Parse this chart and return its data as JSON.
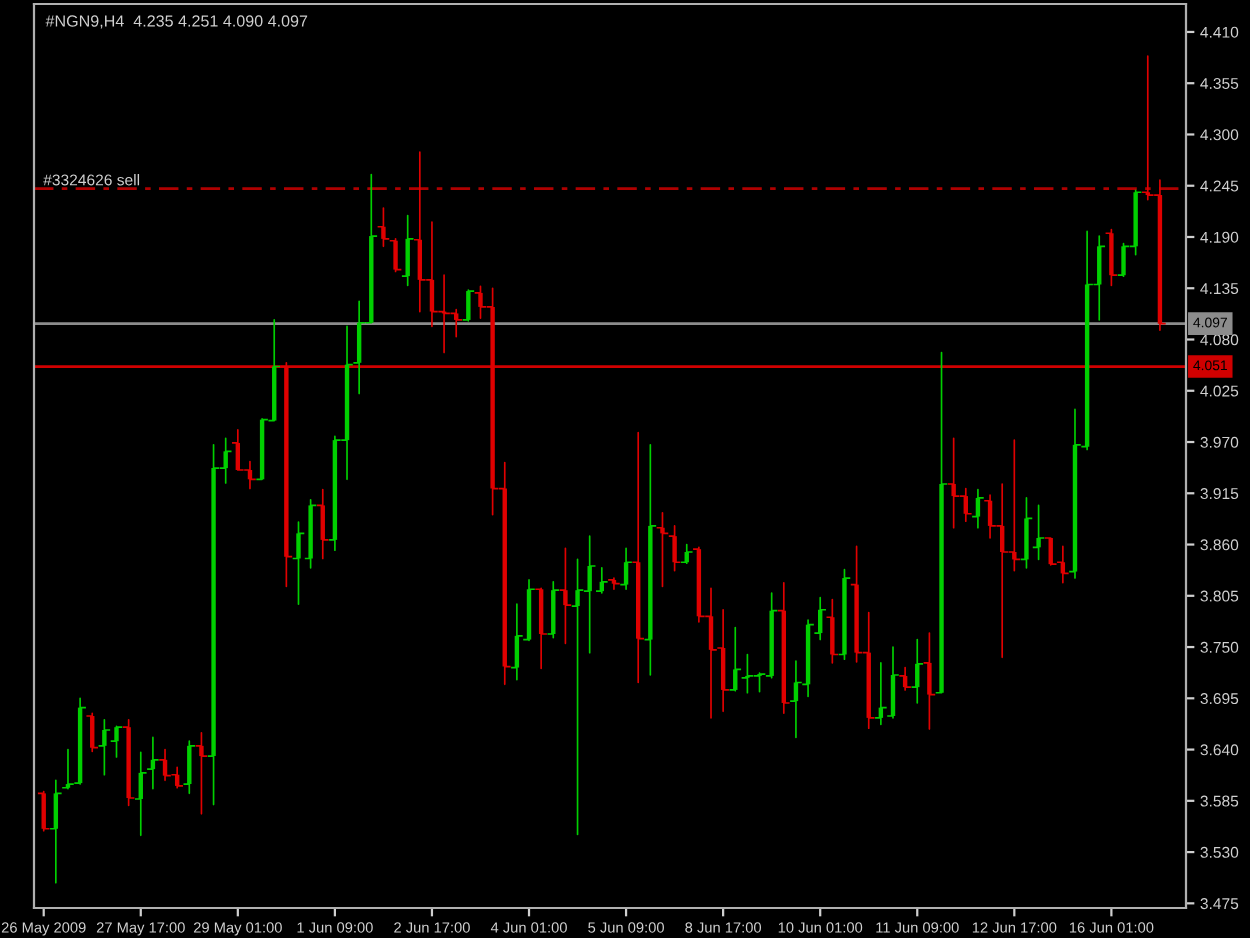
{
  "chart_data": {
    "type": "candlestick",
    "title": "#NGN9,H4  4.235 4.251 4.090 4.097",
    "categories": [
      "26 May 2009",
      null,
      null,
      null,
      null,
      null,
      null,
      null,
      "27 May 17:00",
      null,
      null,
      null,
      null,
      null,
      null,
      null,
      "29 May 01:00",
      null,
      null,
      null,
      null,
      null,
      null,
      null,
      "1 Jun 09:00",
      null,
      null,
      null,
      null,
      null,
      null,
      null,
      "2 Jun 17:00",
      null,
      null,
      null,
      null,
      null,
      null,
      null,
      "4 Jun 01:00",
      null,
      null,
      null,
      null,
      null,
      null,
      null,
      "5 Jun 09:00",
      null,
      null,
      null,
      null,
      null,
      null,
      null,
      "8 Jun 17:00",
      null,
      null,
      null,
      null,
      null,
      null,
      null,
      "10 Jun 01:00",
      null,
      null,
      null,
      null,
      null,
      null,
      null,
      "11 Jun 09:00",
      null,
      null,
      null,
      null,
      null,
      null,
      null,
      "12 Jun 17:00",
      null,
      null,
      null,
      null,
      null,
      null,
      null,
      "16 Jun 01:00",
      null,
      null,
      null,
      null
    ],
    "ohlc": [
      [
        3.593,
        3.595,
        3.553,
        3.555
      ],
      [
        3.555,
        3.607,
        3.497,
        3.593
      ],
      [
        3.599,
        3.64,
        3.598,
        3.603
      ],
      [
        3.604,
        3.695,
        3.603,
        3.685
      ],
      [
        3.676,
        3.679,
        3.638,
        3.642
      ],
      [
        3.644,
        3.672,
        3.613,
        3.661
      ],
      [
        3.649,
        3.665,
        3.632,
        3.664
      ],
      [
        3.664,
        3.672,
        3.58,
        3.588
      ],
      [
        3.587,
        3.637,
        3.548,
        3.615
      ],
      [
        3.619,
        3.653,
        3.598,
        3.629
      ],
      [
        3.629,
        3.64,
        3.607,
        3.612
      ],
      [
        3.613,
        3.621,
        3.599,
        3.601
      ],
      [
        3.603,
        3.649,
        3.593,
        3.644
      ],
      [
        3.644,
        3.658,
        3.571,
        3.633
      ],
      [
        3.633,
        3.967,
        3.581,
        3.942
      ],
      [
        3.942,
        3.974,
        3.926,
        3.96
      ],
      [
        3.969,
        3.983,
        3.94,
        3.94
      ],
      [
        3.94,
        3.949,
        3.92,
        3.93
      ],
      [
        3.93,
        3.995,
        3.93,
        3.994
      ],
      [
        3.993,
        4.101,
        3.993,
        4.051
      ],
      [
        4.051,
        4.055,
        3.815,
        3.847
      ],
      [
        3.845,
        3.884,
        3.796,
        3.872
      ],
      [
        3.845,
        3.908,
        3.835,
        3.902
      ],
      [
        3.902,
        3.919,
        3.845,
        3.865
      ],
      [
        3.865,
        3.976,
        3.854,
        3.972
      ],
      [
        3.972,
        4.094,
        3.93,
        4.053
      ],
      [
        4.055,
        4.121,
        4.022,
        4.098
      ],
      [
        4.098,
        4.257,
        4.098,
        4.191
      ],
      [
        4.201,
        4.221,
        4.18,
        4.188
      ],
      [
        4.186,
        4.188,
        4.153,
        4.155
      ],
      [
        4.148,
        4.213,
        4.138,
        4.188
      ],
      [
        4.187,
        4.281,
        4.11,
        4.144
      ],
      [
        4.144,
        4.206,
        4.094,
        4.11
      ],
      [
        4.11,
        4.149,
        4.066,
        4.108
      ],
      [
        4.108,
        4.112,
        4.083,
        4.101
      ],
      [
        4.101,
        4.133,
        4.1,
        4.132
      ],
      [
        4.13,
        4.137,
        4.103,
        4.115
      ],
      [
        4.115,
        4.135,
        3.892,
        3.92
      ],
      [
        3.92,
        3.948,
        3.71,
        3.729
      ],
      [
        3.728,
        3.796,
        3.715,
        3.762
      ],
      [
        3.758,
        3.822,
        3.757,
        3.812
      ],
      [
        3.812,
        3.813,
        3.727,
        3.764
      ],
      [
        3.764,
        3.82,
        3.76,
        3.811
      ],
      [
        3.811,
        3.856,
        3.754,
        3.795
      ],
      [
        3.794,
        3.844,
        3.549,
        3.811
      ],
      [
        3.81,
        3.869,
        3.744,
        3.837
      ],
      [
        3.81,
        3.835,
        3.808,
        3.82
      ],
      [
        3.822,
        3.824,
        3.812,
        3.818
      ],
      [
        3.817,
        3.856,
        3.812,
        3.841
      ],
      [
        3.841,
        3.98,
        3.712,
        3.759
      ],
      [
        3.758,
        3.967,
        3.72,
        3.88
      ],
      [
        3.878,
        3.894,
        3.815,
        3.872
      ],
      [
        3.869,
        3.88,
        3.832,
        3.841
      ],
      [
        3.841,
        3.86,
        3.84,
        3.852
      ],
      [
        3.855,
        3.857,
        3.777,
        3.783
      ],
      [
        3.783,
        3.813,
        3.674,
        3.747
      ],
      [
        3.749,
        3.79,
        3.681,
        3.704
      ],
      [
        3.704,
        3.771,
        3.703,
        3.726
      ],
      [
        3.717,
        3.742,
        3.701,
        3.719
      ],
      [
        3.719,
        3.722,
        3.702,
        3.721
      ],
      [
        3.719,
        3.808,
        3.717,
        3.789
      ],
      [
        3.789,
        3.819,
        3.679,
        3.69
      ],
      [
        3.692,
        3.735,
        3.653,
        3.712
      ],
      [
        3.71,
        3.779,
        3.697,
        3.774
      ],
      [
        3.765,
        3.803,
        3.758,
        3.79
      ],
      [
        3.782,
        3.801,
        3.733,
        3.742
      ],
      [
        3.742,
        3.833,
        3.737,
        3.824
      ],
      [
        3.817,
        3.858,
        3.734,
        3.744
      ],
      [
        3.744,
        3.787,
        3.663,
        3.674
      ],
      [
        3.674,
        3.733,
        3.667,
        3.685
      ],
      [
        3.676,
        3.75,
        3.674,
        3.72
      ],
      [
        3.719,
        3.728,
        3.704,
        3.707
      ],
      [
        3.707,
        3.758,
        3.69,
        3.732
      ],
      [
        3.733,
        3.765,
        3.662,
        3.699
      ],
      [
        3.701,
        4.066,
        3.701,
        3.925
      ],
      [
        3.925,
        3.974,
        3.878,
        3.912
      ],
      [
        3.912,
        3.92,
        3.885,
        3.893
      ],
      [
        3.89,
        3.919,
        3.878,
        3.91
      ],
      [
        3.907,
        3.913,
        3.867,
        3.88
      ],
      [
        3.88,
        3.925,
        3.739,
        3.852
      ],
      [
        3.852,
        3.972,
        3.832,
        3.844
      ],
      [
        3.844,
        3.91,
        3.835,
        3.888
      ],
      [
        3.857,
        3.902,
        3.844,
        3.867
      ],
      [
        3.867,
        3.867,
        3.838,
        3.839
      ],
      [
        3.841,
        3.858,
        3.819,
        3.829
      ],
      [
        3.831,
        4.005,
        3.824,
        3.967
      ],
      [
        3.965,
        4.196,
        3.962,
        4.139
      ],
      [
        4.139,
        4.191,
        4.101,
        4.18
      ],
      [
        4.194,
        4.198,
        4.138,
        4.149
      ],
      [
        4.149,
        4.183,
        4.148,
        4.18
      ],
      [
        4.18,
        4.24,
        4.171,
        4.238
      ],
      [
        4.238,
        4.384,
        4.23,
        4.235
      ],
      [
        4.235,
        4.251,
        4.09,
        4.097
      ]
    ],
    "colors": [
      "#e00000",
      "#00d000",
      "#00d000",
      "#00d000",
      "#e00000",
      "#00d000",
      "#00d000",
      "#e00000",
      "#00d000",
      "#00d000",
      "#e00000",
      "#e00000",
      "#00d000",
      "#e00000",
      "#00d000",
      "#00d000",
      "#e00000",
      "#e00000",
      "#00d000",
      "#00d000",
      "#e00000",
      "#00d000",
      "#00d000",
      "#e00000",
      "#00d000",
      "#00d000",
      "#00d000",
      "#00d000",
      "#e00000",
      "#e00000",
      "#00d000",
      "#e00000",
      "#e00000",
      "#e00000",
      "#e00000",
      "#00d000",
      "#e00000",
      "#e00000",
      "#e00000",
      "#00d000",
      "#00d000",
      "#e00000",
      "#00d000",
      "#e00000",
      "#00d000",
      "#00d000",
      "#00d000",
      "#e00000",
      "#00d000",
      "#e00000",
      "#00d000",
      "#e00000",
      "#e00000",
      "#00d000",
      "#e00000",
      "#e00000",
      "#e00000",
      "#00d000",
      "#00d000",
      "#00d000",
      "#00d000",
      "#e00000",
      "#00d000",
      "#00d000",
      "#00d000",
      "#e00000",
      "#00d000",
      "#e00000",
      "#e00000",
      "#00d000",
      "#00d000",
      "#e00000",
      "#00d000",
      "#e00000",
      "#00d000",
      "#e00000",
      "#e00000",
      "#00d000",
      "#e00000",
      "#e00000",
      "#e00000",
      "#00d000",
      "#00d000",
      "#e00000",
      "#e00000",
      "#00d000",
      "#00d000",
      "#00d000",
      "#e00000",
      "#00d000",
      "#00d000",
      "#e00000",
      "#e00000"
    ],
    "ylim": [
      3.47,
      4.44
    ],
    "yticks": [
      {
        "value": 4.41,
        "label": "4.410"
      },
      4.355,
      {
        "value": 4.3,
        "label": "4.300"
      },
      4.245,
      {
        "value": 4.19,
        "label": "4.190"
      },
      4.135,
      {
        "value": 4.08,
        "label": "4.080"
      },
      4.025,
      {
        "value": 3.97,
        "label": "3.970"
      },
      3.915,
      {
        "value": 3.86,
        "label": "3.860"
      },
      3.805,
      {
        "value": 3.75,
        "label": "3.750"
      },
      3.695,
      {
        "value": 3.64,
        "label": "3.640"
      },
      3.585,
      {
        "value": 3.53,
        "label": "3.530"
      },
      3.475
    ],
    "ref_lines": [
      {
        "axis": "y",
        "value": 4.242,
        "label": "#3324626 sell",
        "color": "#b00000",
        "line_style": "dashed"
      },
      {
        "axis": "y",
        "value": 4.097,
        "label": "4.097",
        "color": "#8c8c8c",
        "line_style": "solid"
      },
      {
        "axis": "y",
        "value": 4.051,
        "label": "4.051",
        "color": "#d00000",
        "line_style": "solid"
      }
    ]
  }
}
